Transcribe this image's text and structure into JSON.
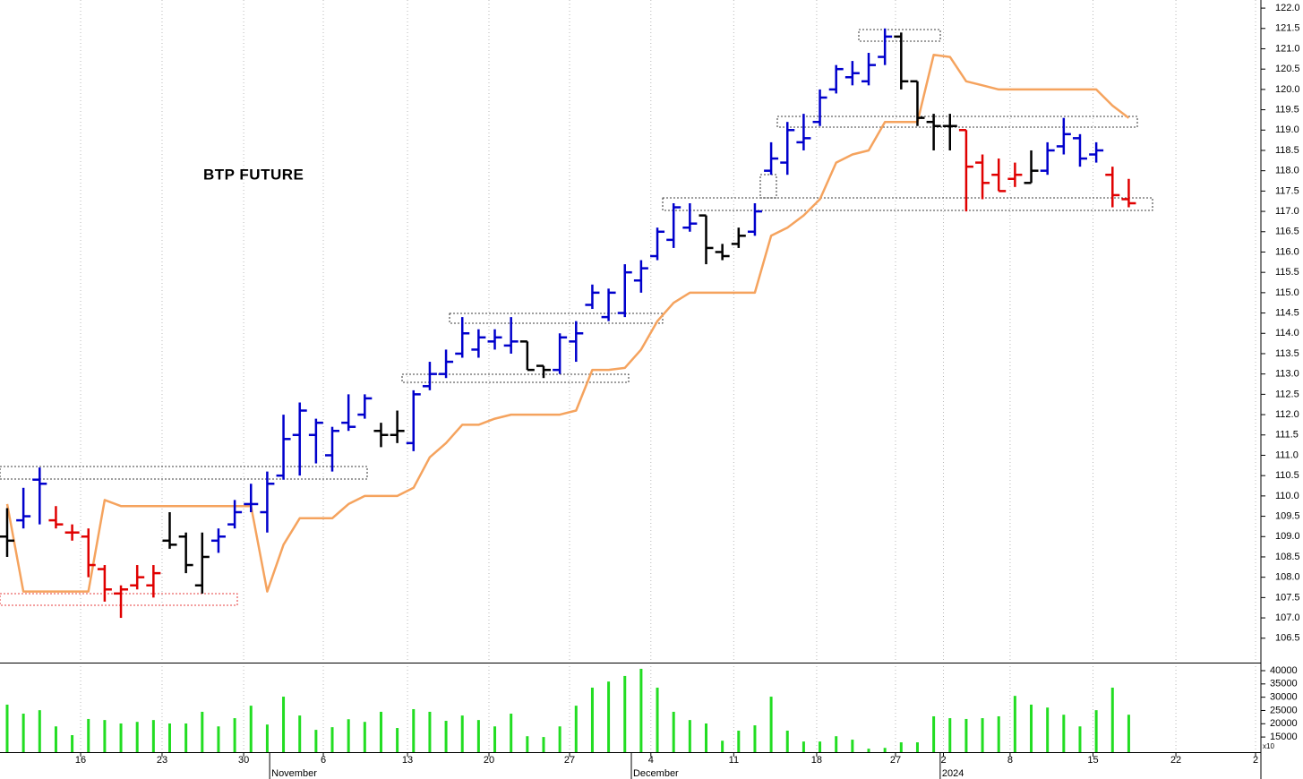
{
  "chart_data": [
    {
      "type": "ohlc",
      "title": "BTP FUTURE",
      "categories": [
        null,
        null,
        null,
        null,
        null,
        null,
        null,
        null,
        null,
        null,
        null,
        null,
        null,
        null,
        null,
        null,
        null,
        null,
        null,
        null,
        null,
        null,
        null,
        null,
        null,
        null,
        null,
        null,
        null,
        null,
        null,
        null,
        null,
        null,
        null,
        null,
        null,
        null,
        null,
        null,
        null,
        null,
        null,
        null,
        null,
        null,
        null,
        null,
        null,
        null,
        null,
        null,
        null,
        null,
        null,
        null,
        null,
        null,
        null,
        null,
        null,
        null,
        null,
        null,
        null,
        null,
        null,
        null,
        null,
        null
      ],
      "open": [
        109.0,
        109.4,
        110.4,
        109.4,
        109.1,
        109.0,
        108.2,
        107.6,
        107.8,
        107.8,
        108.9,
        109.0,
        107.8,
        108.9,
        109.3,
        109.8,
        109.6,
        110.5,
        111.5,
        111.5,
        111.0,
        111.8,
        112.0,
        111.6,
        111.5,
        111.3,
        112.7,
        113.0,
        113.5,
        113.6,
        113.8,
        113.7,
        113.8,
        113.2,
        113.1,
        113.8,
        114.7,
        114.4,
        114.5,
        115.3,
        115.9,
        116.3,
        116.6,
        116.9,
        116.0,
        116.2,
        116.5,
        118.0,
        118.2,
        118.7,
        119.2,
        120.0,
        120.3,
        120.2,
        120.8,
        121.3,
        120.2,
        119.2,
        119.1,
        119.0,
        118.2,
        117.9,
        117.8,
        117.7,
        118.0,
        118.6,
        118.8,
        118.4,
        117.9,
        117.3
      ],
      "high": [
        109.7,
        110.2,
        110.7,
        109.75,
        109.3,
        109.2,
        108.3,
        107.8,
        108.3,
        108.3,
        109.6,
        109.1,
        109.1,
        109.2,
        109.9,
        110.3,
        110.6,
        112.0,
        112.3,
        111.9,
        111.7,
        112.5,
        112.5,
        111.8,
        112.1,
        112.6,
        113.3,
        113.6,
        114.4,
        114.1,
        114.1,
        114.4,
        113.8,
        113.2,
        114.0,
        114.3,
        115.2,
        115.1,
        115.7,
        115.8,
        116.6,
        117.2,
        117.2,
        116.9,
        116.2,
        116.6,
        117.2,
        118.7,
        119.2,
        119.4,
        120.0,
        120.6,
        120.7,
        120.9,
        121.5,
        121.4,
        120.2,
        119.4,
        119.4,
        119.0,
        118.4,
        118.3,
        118.2,
        118.5,
        118.7,
        119.3,
        118.9,
        118.7,
        118.1,
        117.8
      ],
      "low": [
        108.5,
        109.2,
        109.3,
        109.2,
        108.9,
        108.0,
        107.4,
        107.0,
        107.7,
        107.5,
        108.7,
        108.1,
        107.6,
        108.6,
        109.2,
        109.6,
        109.1,
        110.4,
        110.5,
        110.8,
        110.6,
        111.6,
        111.9,
        111.2,
        111.3,
        111.1,
        112.6,
        112.9,
        113.4,
        113.4,
        113.6,
        113.5,
        113.1,
        112.9,
        113.0,
        113.3,
        114.6,
        114.3,
        114.4,
        115.0,
        115.8,
        116.1,
        116.5,
        115.7,
        115.8,
        116.1,
        116.4,
        117.9,
        117.9,
        118.5,
        119.1,
        119.9,
        120.1,
        120.1,
        120.6,
        120.0,
        119.1,
        118.5,
        118.5,
        117.0,
        117.3,
        117.5,
        117.6,
        117.7,
        117.9,
        118.4,
        118.1,
        118.2,
        117.1,
        117.1
      ],
      "close": [
        108.9,
        109.5,
        110.3,
        109.3,
        109.1,
        108.3,
        107.7,
        107.7,
        108.0,
        108.1,
        108.8,
        108.3,
        108.5,
        109.0,
        109.6,
        109.8,
        110.3,
        111.4,
        112.1,
        111.8,
        111.6,
        111.7,
        112.4,
        111.5,
        111.6,
        112.5,
        113.0,
        113.3,
        114.0,
        113.9,
        113.9,
        113.8,
        113.1,
        113.1,
        113.9,
        114.0,
        115.0,
        115.0,
        115.5,
        115.6,
        116.5,
        117.1,
        116.7,
        116.1,
        115.9,
        116.4,
        117.0,
        118.3,
        119.0,
        118.8,
        119.8,
        120.5,
        120.4,
        120.6,
        121.3,
        120.2,
        119.3,
        119.1,
        119.1,
        118.1,
        117.7,
        117.5,
        117.9,
        118.0,
        118.5,
        118.9,
        118.3,
        118.5,
        117.4,
        117.2
      ],
      "bar_colors": [
        "#000000",
        "#0000cc",
        "#0000cc",
        "#e00000",
        "#e00000",
        "#e00000",
        "#e00000",
        "#e00000",
        "#e00000",
        "#e00000",
        "#000000",
        "#000000",
        "#000000",
        "#0000cc",
        "#0000cc",
        "#0000cc",
        "#0000cc",
        "#0000cc",
        "#0000cc",
        "#0000cc",
        "#0000cc",
        "#0000cc",
        "#0000cc",
        "#000000",
        "#000000",
        "#0000cc",
        "#0000cc",
        "#0000cc",
        "#0000cc",
        "#0000cc",
        "#0000cc",
        "#0000cc",
        "#000000",
        "#000000",
        "#0000cc",
        "#0000cc",
        "#0000cc",
        "#0000cc",
        "#0000cc",
        "#0000cc",
        "#0000cc",
        "#0000cc",
        "#0000cc",
        "#000000",
        "#000000",
        "#000000",
        "#0000cc",
        "#0000cc",
        "#0000cc",
        "#0000cc",
        "#0000cc",
        "#0000cc",
        "#0000cc",
        "#0000cc",
        "#0000cc",
        "#000000",
        "#000000",
        "#000000",
        "#000000",
        "#e00000",
        "#e00000",
        "#e00000",
        "#e00000",
        "#000000",
        "#0000cc",
        "#0000cc",
        "#0000cc",
        "#0000cc",
        "#e00000",
        "#e00000"
      ],
      "overlay": {
        "color": "#f5a35e",
        "values": [
          109.8,
          107.65,
          107.65,
          107.65,
          107.65,
          107.65,
          109.9,
          109.75,
          109.75,
          109.75,
          109.75,
          109.75,
          109.75,
          109.75,
          109.75,
          109.75,
          107.65,
          108.8,
          109.45,
          109.45,
          109.45,
          109.8,
          110.0,
          110.0,
          110.0,
          110.2,
          110.95,
          111.3,
          111.75,
          111.75,
          111.9,
          112.0,
          112.0,
          112.0,
          112.0,
          112.1,
          113.1,
          113.1,
          113.15,
          113.6,
          114.3,
          114.75,
          115.0,
          115.0,
          115.0,
          115.0,
          115.0,
          116.4,
          116.6,
          116.9,
          117.3,
          118.2,
          118.4,
          118.5,
          119.2,
          119.2,
          119.2,
          120.85,
          120.8,
          120.2,
          120.1,
          120.0,
          120.0,
          120.0,
          120.0,
          120.0,
          120.0,
          120.0,
          119.6,
          119.3
        ]
      },
      "xlim": [
        -0.44,
        77.13
      ],
      "xticks": [
        {
          "value": 4.52,
          "label": "16"
        },
        {
          "value": 9.53,
          "label": "23"
        },
        {
          "value": 14.55,
          "label": "30"
        },
        {
          "value": 19.45,
          "label": "6"
        },
        {
          "value": 24.63,
          "label": "13"
        },
        {
          "value": 29.64,
          "label": "20"
        },
        {
          "value": 34.6,
          "label": "27"
        },
        {
          "value": 39.6,
          "label": "4"
        },
        {
          "value": 44.7,
          "label": "11"
        },
        {
          "value": 49.8,
          "label": "18"
        },
        {
          "value": 54.65,
          "label": "27"
        },
        {
          "value": 57.6,
          "label": "2"
        },
        {
          "value": 61.7,
          "label": "8"
        },
        {
          "value": 66.8,
          "label": "15"
        },
        {
          "value": 71.9,
          "label": "22"
        },
        {
          "value": 76.8,
          "label": "2"
        }
      ],
      "xmajorticks": [
        {
          "value": 16.15,
          "label": "November"
        },
        {
          "value": 38.4,
          "label": "December"
        },
        {
          "value": 57.4,
          "label": "2024"
        }
      ],
      "ylim": [
        105.9,
        122.2
      ],
      "yticks": [
        106.5,
        {
          "value": 107,
          "label": "107.0"
        },
        107.5,
        {
          "value": 108,
          "label": "108.0"
        },
        108.5,
        {
          "value": 109,
          "label": "109.0"
        },
        109.5,
        {
          "value": 110,
          "label": "110.0"
        },
        110.5,
        {
          "value": 111,
          "label": "111.0"
        },
        111.5,
        {
          "value": 112,
          "label": "112.0"
        },
        112.5,
        {
          "value": 113,
          "label": "113.0"
        },
        113.5,
        {
          "value": 114,
          "label": "114.0"
        },
        114.5,
        {
          "value": 115,
          "label": "115.0"
        },
        115.5,
        {
          "value": 116,
          "label": "116.0"
        },
        116.5,
        {
          "value": 117,
          "label": "117.0"
        },
        117.5,
        {
          "value": 118,
          "label": "118.0"
        },
        118.5,
        {
          "value": 119,
          "label": "119.0"
        },
        119.5,
        {
          "value": 120,
          "label": "120.0"
        },
        120.5,
        {
          "value": 121,
          "label": "121.0"
        },
        121.5,
        {
          "value": 122,
          "label": "122.0"
        }
      ],
      "grid": true
    },
    {
      "type": "bar",
      "color": "#22dd22",
      "values": [
        27200,
        23800,
        25100,
        19000,
        15700,
        21800,
        21400,
        20100,
        20700,
        21400,
        20100,
        20100,
        24500,
        19000,
        22100,
        26800,
        19700,
        30200,
        23100,
        17700,
        18700,
        21700,
        20700,
        24500,
        18400,
        25500,
        24500,
        21100,
        23100,
        21400,
        19000,
        23800,
        15300,
        15000,
        19000,
        26800,
        33600,
        35900,
        38000,
        40700,
        33600,
        24500,
        21400,
        20100,
        13600,
        17400,
        19400,
        30200,
        17400,
        13300,
        13300,
        15300,
        14000,
        10600,
        10900,
        13000,
        13000,
        22800,
        22100,
        21800,
        22100,
        22800,
        30500,
        27200,
        26100,
        23400,
        19000,
        25100,
        33600,
        23400
      ],
      "ylim": [
        9300,
        42700
      ],
      "yticks": [
        15000,
        20000,
        25000,
        30000,
        35000,
        40000
      ],
      "axis_note": "x10"
    }
  ]
}
